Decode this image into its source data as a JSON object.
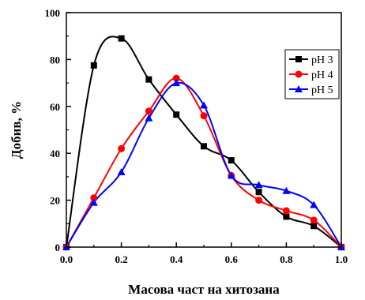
{
  "chart_data": {
    "type": "line",
    "title": "",
    "xlabel": "Масова част на хитозана",
    "ylabel": "Добив, %",
    "xlim": [
      0.0,
      1.0
    ],
    "ylim": [
      0,
      100
    ],
    "xticks": [
      "0.0",
      "0.2",
      "0.4",
      "0.6",
      "0.8",
      "1.0"
    ],
    "yticks": [
      "0",
      "20",
      "40",
      "60",
      "80",
      "100"
    ],
    "grid": false,
    "legend_position": "top-right",
    "series": [
      {
        "name": "pH 3",
        "color": "#000000",
        "marker": "square",
        "points": [
          {
            "x": 0.0,
            "y": 0
          },
          {
            "x": 0.1,
            "y": 77.5
          },
          {
            "x": 0.2,
            "y": 89
          },
          {
            "x": 0.3,
            "y": 71.5
          },
          {
            "x": 0.4,
            "y": 56.5
          },
          {
            "x": 0.5,
            "y": 43
          },
          {
            "x": 0.6,
            "y": 37
          },
          {
            "x": 0.7,
            "y": 23.5
          },
          {
            "x": 0.8,
            "y": 13
          },
          {
            "x": 0.9,
            "y": 9
          },
          {
            "x": 1.0,
            "y": 0
          }
        ]
      },
      {
        "name": "pH 4",
        "color": "#ff0000",
        "marker": "circle",
        "points": [
          {
            "x": 0.0,
            "y": 0
          },
          {
            "x": 0.1,
            "y": 21
          },
          {
            "x": 0.2,
            "y": 42
          },
          {
            "x": 0.3,
            "y": 58
          },
          {
            "x": 0.4,
            "y": 72
          },
          {
            "x": 0.5,
            "y": 56
          },
          {
            "x": 0.6,
            "y": 30.5
          },
          {
            "x": 0.7,
            "y": 20
          },
          {
            "x": 0.8,
            "y": 15.5
          },
          {
            "x": 0.9,
            "y": 11.5
          },
          {
            "x": 1.0,
            "y": 0
          }
        ]
      },
      {
        "name": "pH 5",
        "color": "#0000ff",
        "marker": "triangle",
        "points": [
          {
            "x": 0.0,
            "y": 0
          },
          {
            "x": 0.1,
            "y": 19
          },
          {
            "x": 0.2,
            "y": 32
          },
          {
            "x": 0.3,
            "y": 55
          },
          {
            "x": 0.4,
            "y": 70
          },
          {
            "x": 0.5,
            "y": 60.5
          },
          {
            "x": 0.6,
            "y": 30.5
          },
          {
            "x": 0.7,
            "y": 26.5
          },
          {
            "x": 0.8,
            "y": 24
          },
          {
            "x": 0.9,
            "y": 18
          },
          {
            "x": 1.0,
            "y": 0
          }
        ]
      }
    ]
  }
}
